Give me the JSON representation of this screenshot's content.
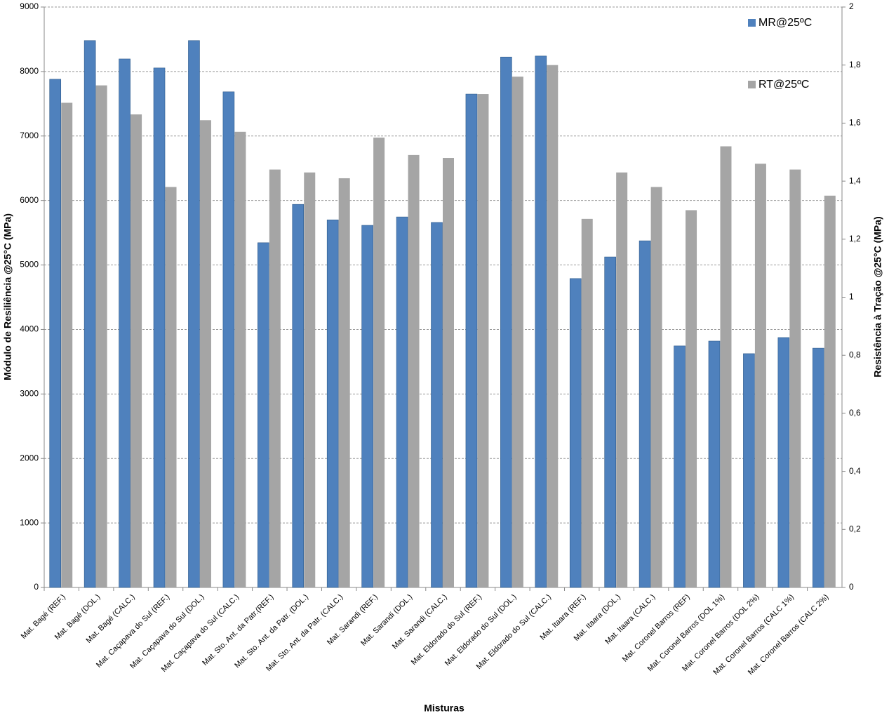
{
  "chart_data": {
    "type": "bar",
    "xlabel": "Misturas",
    "ylabel": "Módulo de Resiliência @25°C (MPa)",
    "y2label": "Resistência à Tração @25°C (MPa)",
    "categories": [
      "Mat. Bagé (REF.)",
      "Mat. Bagé (DOL.)",
      "Mat. Bagé (CALC.)",
      "Mat. Caçapava do Sul (REF.)",
      "Mat. Caçapava do Sul (DOL.)",
      "Mat. Caçapava do Sul (CALC.)",
      "Mat. Sto. Ant. da Patr.(REF.)",
      "Mat. Sto. Ant. da Patr. (DOL.)",
      "Mat. Sto. Ant. da Patr. (CALC.)",
      "Mat. Sarandi (REF.)",
      "Mat. Sarandi (DOL.)",
      "Mat. Sarandi (CALC.)",
      "Mat. Eldorado do Sul (REF.)",
      "Mat. Eldorado do Sul (DOL.)",
      "Mat. Eldorado do Sul (CALC.)",
      "Mat. Itaara (REF.)",
      "Mat. Itaara (DOL.)",
      "Mat. Itaara (CALC.)",
      "Mat. Coronel Barros (REF)",
      "Mat. Coronel Barros (DOL 1%)",
      "Mat. Coronel Barros (DOL 2%)",
      "Mat. Coronel Barros (CALC 1%)",
      "Mat. Coronel Barros (CALC 2%)"
    ],
    "series": [
      {
        "name": "MR@25ºC",
        "color": "#4f81bd",
        "values": [
          7880,
          8480,
          8195,
          8055,
          8480,
          7685,
          5345,
          5940,
          5700,
          5615,
          5745,
          5660,
          7650,
          8225,
          8240,
          4790,
          5125,
          5375,
          3745,
          3820,
          3625,
          3875,
          3710
        ]
      },
      {
        "name": "RT@25ºC",
        "color": "#a5a5a5",
        "axis": "y2",
        "values": [
          1.67,
          1.73,
          1.63,
          1.38,
          1.61,
          1.57,
          1.44,
          1.43,
          1.41,
          1.55,
          1.49,
          1.48,
          1.7,
          1.76,
          1.8,
          1.27,
          1.43,
          1.38,
          1.3,
          1.52,
          1.46,
          1.44,
          1.35
        ]
      }
    ],
    "ylim": [
      0,
      9000
    ],
    "yticks": [
      0,
      1000,
      2000,
      3000,
      4000,
      5000,
      6000,
      7000,
      8000,
      9000
    ],
    "y2lim": [
      0,
      2
    ],
    "y2ticks": [
      0,
      {
        "value": 0.2,
        "label": "0,2"
      },
      {
        "value": 0.4,
        "label": "0,4"
      },
      {
        "value": 0.6,
        "label": "0,6"
      },
      {
        "value": 0.8,
        "label": "0,8"
      },
      1,
      {
        "value": 1.2,
        "label": "1,2"
      },
      {
        "value": 1.4,
        "label": "1,4"
      },
      {
        "value": 1.6,
        "label": "1,6"
      },
      {
        "value": 1.8,
        "label": "1,8"
      },
      2
    ],
    "grid": true,
    "legend": "upper right"
  }
}
